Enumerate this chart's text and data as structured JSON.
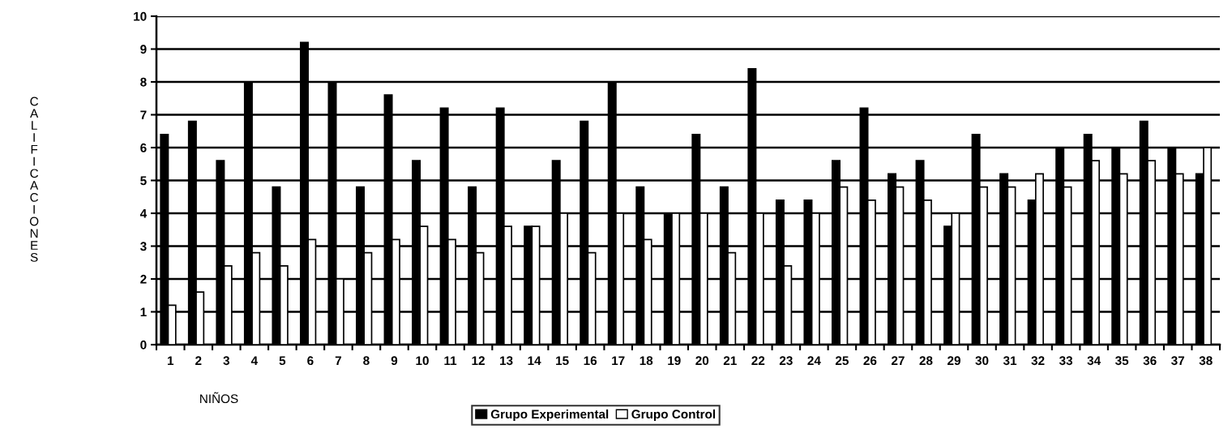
{
  "chart_data": {
    "type": "bar",
    "categories": [
      "1",
      "2",
      "3",
      "4",
      "5",
      "6",
      "7",
      "8",
      "9",
      "10",
      "11",
      "12",
      "13",
      "14",
      "15",
      "16",
      "17",
      "18",
      "19",
      "20",
      "21",
      "22",
      "23",
      "24",
      "25",
      "26",
      "27",
      "28",
      "29",
      "30",
      "31",
      "32",
      "33",
      "34",
      "35",
      "36",
      "37",
      "38"
    ],
    "series": [
      {
        "name": "Grupo Experimental",
        "color": "#000000",
        "values": [
          6.4,
          6.8,
          5.6,
          8,
          4.8,
          9.2,
          8,
          4.8,
          7.6,
          5.6,
          7.2,
          4.8,
          7.2,
          3.6,
          5.6,
          6.8,
          8,
          4.8,
          4,
          6.4,
          4.8,
          8.4,
          4.4,
          4.4,
          5.6,
          7.2,
          5.2,
          5.6,
          3.6,
          6.4,
          5.2,
          4.4,
          6,
          6.4,
          6,
          6.8,
          6,
          5.2
        ]
      },
      {
        "name": "Grupo Control",
        "color": "#ffffff",
        "values": [
          1.2,
          1.6,
          2.4,
          2.8,
          2.4,
          3.2,
          2,
          2.8,
          3.2,
          3.6,
          3.2,
          2.8,
          3.6,
          3.6,
          4,
          2.8,
          4,
          3.2,
          4,
          4,
          2.8,
          4,
          2.4,
          4,
          4.8,
          4.4,
          4.8,
          4.4,
          4,
          4.8,
          4.8,
          5.2,
          4.8,
          5.6,
          5.2,
          5.6,
          5.2,
          6
        ]
      }
    ],
    "xlabel": "NIÑOS",
    "ylabel": "CALIFICACIONES",
    "ylim": [
      0,
      10
    ],
    "yticks": [
      0,
      1,
      2,
      3,
      4,
      5,
      6,
      7,
      8,
      9,
      10
    ],
    "grid": "y",
    "legend": "bottom"
  }
}
